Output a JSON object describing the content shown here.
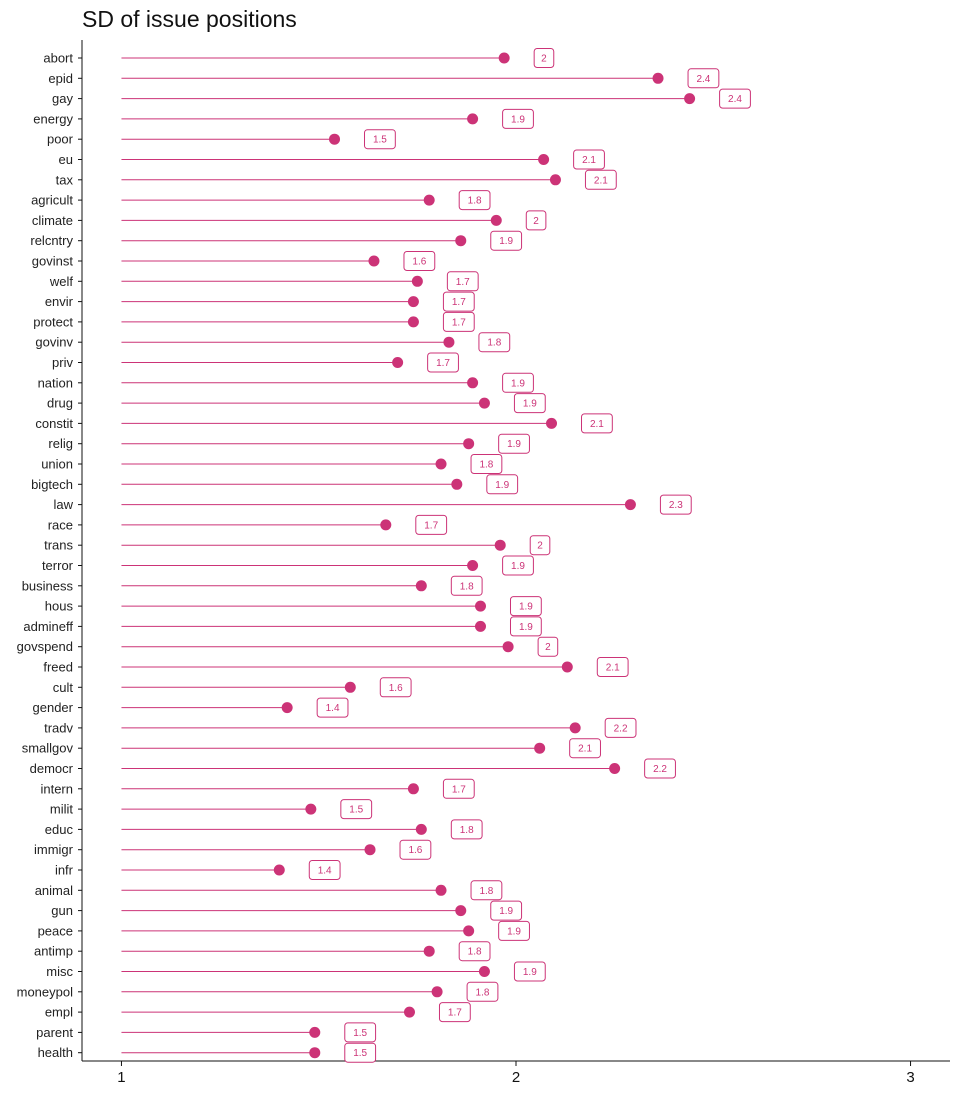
{
  "chart_data": {
    "type": "lollipop",
    "title": "SD of issue positions",
    "xlabel": "",
    "ylabel": "",
    "xlim": [
      0.9,
      3.1
    ],
    "x_ticks": [
      "1",
      "2",
      "3"
    ],
    "grid": false,
    "legend": "none",
    "color": "#cc3377",
    "categories": [
      "abort",
      "epid",
      "gay",
      "energy",
      "poor",
      "eu",
      "tax",
      "agricult",
      "climate",
      "relcntry",
      "govinst",
      "welf",
      "envir",
      "protect",
      "govinv",
      "priv",
      "nation",
      "drug",
      "constit",
      "relig",
      "union",
      "bigtech",
      "law",
      "race",
      "trans",
      "terror",
      "business",
      "hous",
      "admineff",
      "govspend",
      "freed",
      "cult",
      "gender",
      "tradv",
      "smallgov",
      "democr",
      "intern",
      "milit",
      "educ",
      "immigr",
      "infr",
      "animal",
      "gun",
      "peace",
      "antimp",
      "misc",
      "moneypol",
      "empl",
      "parent",
      "health"
    ],
    "values": [
      1.97,
      2.36,
      2.44,
      1.89,
      1.54,
      2.07,
      2.1,
      1.78,
      1.95,
      1.86,
      1.64,
      1.75,
      1.74,
      1.74,
      1.83,
      1.7,
      1.89,
      1.92,
      2.09,
      1.88,
      1.81,
      1.85,
      2.29,
      1.67,
      1.96,
      1.89,
      1.76,
      1.91,
      1.91,
      1.98,
      2.13,
      1.58,
      1.42,
      2.15,
      2.06,
      2.25,
      1.74,
      1.48,
      1.76,
      1.63,
      1.4,
      1.81,
      1.86,
      1.88,
      1.78,
      1.92,
      1.8,
      1.73,
      1.49,
      1.49
    ],
    "labels": [
      "2",
      "2.4",
      "2.4",
      "1.9",
      "1.5",
      "2.1",
      "2.1",
      "1.8",
      "2",
      "1.9",
      "1.6",
      "1.7",
      "1.7",
      "1.7",
      "1.8",
      "1.7",
      "1.9",
      "1.9",
      "2.1",
      "1.9",
      "1.8",
      "1.9",
      "2.3",
      "1.7",
      "2",
      "1.9",
      "1.8",
      "1.9",
      "1.9",
      "2",
      "2.1",
      "1.6",
      "1.4",
      "2.2",
      "2.1",
      "2.2",
      "1.7",
      "1.5",
      "1.8",
      "1.6",
      "1.4",
      "1.8",
      "1.9",
      "1.9",
      "1.8",
      "1.9",
      "1.8",
      "1.7",
      "1.5",
      "1.5"
    ]
  }
}
